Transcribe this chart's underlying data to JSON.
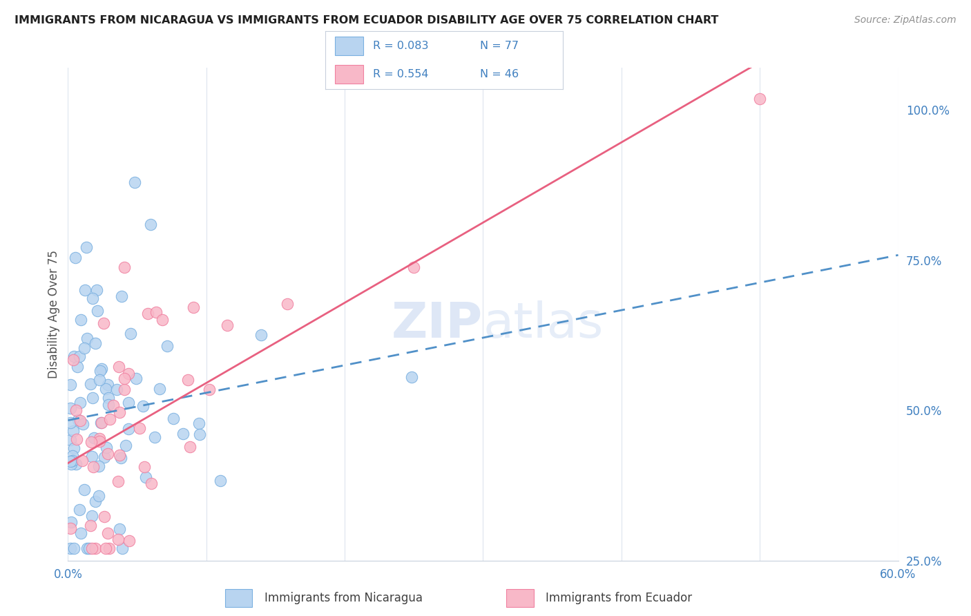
{
  "title": "IMMIGRANTS FROM NICARAGUA VS IMMIGRANTS FROM ECUADOR DISABILITY AGE OVER 75 CORRELATION CHART",
  "source": "Source: ZipAtlas.com",
  "ylabel": "Disability Age Over 75",
  "xlim": [
    0.0,
    0.6
  ],
  "ylim": [
    0.28,
    1.07
  ],
  "xticks": [
    0.0,
    0.1,
    0.2,
    0.3,
    0.4,
    0.5,
    0.6
  ],
  "xticklabels": [
    "0.0%",
    "",
    "",
    "",
    "",
    "",
    "60.0%"
  ],
  "yticks_right": [
    0.25,
    0.5,
    0.75,
    1.0
  ],
  "yticklabels_right": [
    "25.0%",
    "50.0%",
    "75.0%",
    "100.0%"
  ],
  "nicaragua_R": 0.083,
  "nicaragua_N": 77,
  "ecuador_R": 0.554,
  "ecuador_N": 46,
  "nicaragua_face_color": "#b8d4f0",
  "nicaragua_edge_color": "#7ab0e0",
  "ecuador_face_color": "#f8b8c8",
  "ecuador_edge_color": "#f080a0",
  "nicaragua_trend_color": "#5090c8",
  "ecuador_trend_color": "#e86080",
  "right_tick_color": "#4080c0",
  "bottom_tick_color": "#4080c0",
  "title_color": "#202020",
  "source_color": "#909090",
  "watermark_color": "#c8d8f0",
  "grid_color": "#dce4ee",
  "legend_border_color": "#c8d0dc"
}
